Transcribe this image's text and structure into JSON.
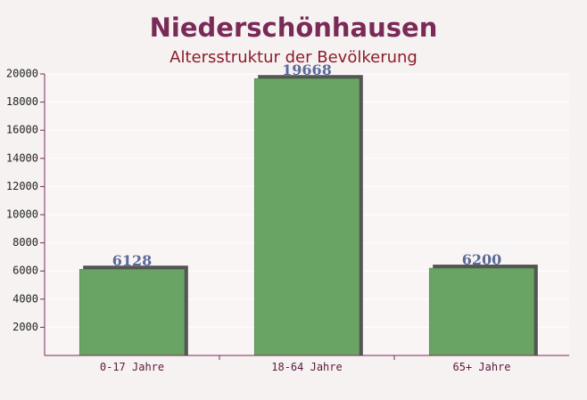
{
  "chart_data": {
    "type": "bar",
    "title": "Niederschönhausen",
    "subtitle": "Altersstruktur der Bevölkerung",
    "categories": [
      "0-17 Jahre",
      "18-64 Jahre",
      "65+ Jahre"
    ],
    "values": [
      6128,
      19668,
      6200
    ],
    "color": "#6aa464",
    "ylim": [
      0,
      20000
    ],
    "yticks": [
      2000,
      4000,
      6000,
      8000,
      10000,
      12000,
      14000,
      16000,
      18000,
      20000
    ],
    "grid": true
  }
}
